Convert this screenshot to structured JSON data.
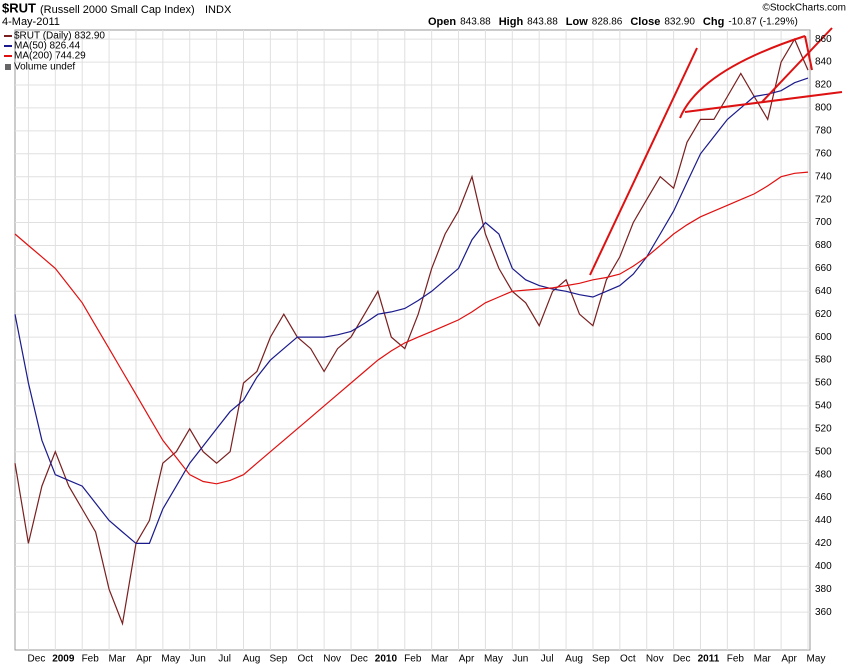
{
  "chart_data": {
    "type": "line",
    "symbol": "$RUT",
    "name": "(Russell 2000 Small Cap Index)",
    "exchange": "INDX",
    "date": "4-May-2011",
    "credit": "©StockCharts.com",
    "quote": [
      {
        "label": "Open",
        "value": "843.88"
      },
      {
        "label": "High",
        "value": "843.88"
      },
      {
        "label": "Low",
        "value": "828.86"
      },
      {
        "label": "Close",
        "value": "832.90"
      },
      {
        "label": "Chg",
        "value": "-10.87 (-1.29%)"
      }
    ],
    "volume_label": "Volume undef",
    "categories": [
      null,
      "Dec",
      null,
      "2009",
      null,
      "Feb",
      null,
      "Mar",
      null,
      "Apr",
      null,
      "May",
      null,
      "Jun",
      null,
      "Jul",
      null,
      "Aug",
      null,
      "Sep",
      null,
      "Oct",
      null,
      "Nov",
      null,
      "Dec",
      null,
      "2010",
      null,
      "Feb",
      null,
      "Mar",
      null,
      "Apr",
      null,
      "May",
      null,
      "Jun",
      null,
      "Jul",
      null,
      "Aug",
      null,
      "Sep",
      null,
      "Oct",
      null,
      "Nov",
      null,
      "Dec",
      null,
      "2011",
      null,
      "Feb",
      null,
      "Mar",
      null,
      "Apr",
      null,
      "May"
    ],
    "series": [
      {
        "name": "$RUT (Daily) 832.90",
        "color": "#7a1f1f",
        "values": [
          490,
          420,
          470,
          500,
          470,
          450,
          430,
          380,
          350,
          420,
          440,
          490,
          500,
          520,
          500,
          490,
          500,
          560,
          570,
          600,
          620,
          600,
          590,
          570,
          590,
          600,
          620,
          640,
          600,
          590,
          620,
          660,
          690,
          710,
          740,
          690,
          660,
          640,
          630,
          610,
          640,
          650,
          620,
          610,
          650,
          670,
          700,
          720,
          740,
          730,
          770,
          790,
          790,
          810,
          830,
          810,
          790,
          840,
          860,
          833
        ]
      },
      {
        "name": "MA(50) 826.44",
        "color": "#1a1a8c",
        "values": [
          620,
          560,
          510,
          480,
          475,
          470,
          455,
          440,
          430,
          420,
          420,
          450,
          470,
          490,
          505,
          520,
          535,
          545,
          565,
          580,
          590,
          600,
          600,
          600,
          602,
          605,
          612,
          620,
          622,
          625,
          632,
          640,
          650,
          660,
          685,
          700,
          690,
          660,
          650,
          645,
          642,
          640,
          637,
          635,
          640,
          645,
          655,
          670,
          690,
          710,
          735,
          760,
          775,
          790,
          800,
          810,
          812,
          815,
          822,
          826
        ]
      },
      {
        "name": "MA(200) 744.29",
        "color": "#e01010",
        "values": [
          690,
          680,
          670,
          660,
          645,
          630,
          610,
          590,
          570,
          550,
          530,
          510,
          495,
          480,
          474,
          472,
          475,
          480,
          490,
          500,
          510,
          520,
          530,
          540,
          550,
          560,
          570,
          580,
          588,
          595,
          600,
          605,
          610,
          615,
          622,
          630,
          635,
          640,
          641,
          642,
          643,
          645,
          647,
          650,
          652,
          655,
          662,
          670,
          680,
          690,
          698,
          705,
          710,
          715,
          720,
          725,
          732,
          740,
          743,
          744
        ]
      }
    ],
    "ylim": [
      327,
      868
    ],
    "yticks": [
      360,
      380,
      400,
      420,
      440,
      460,
      480,
      500,
      520,
      540,
      560,
      580,
      600,
      620,
      640,
      660,
      680,
      700,
      720,
      740,
      760,
      780,
      800,
      820,
      840,
      860
    ],
    "grid": true
  }
}
